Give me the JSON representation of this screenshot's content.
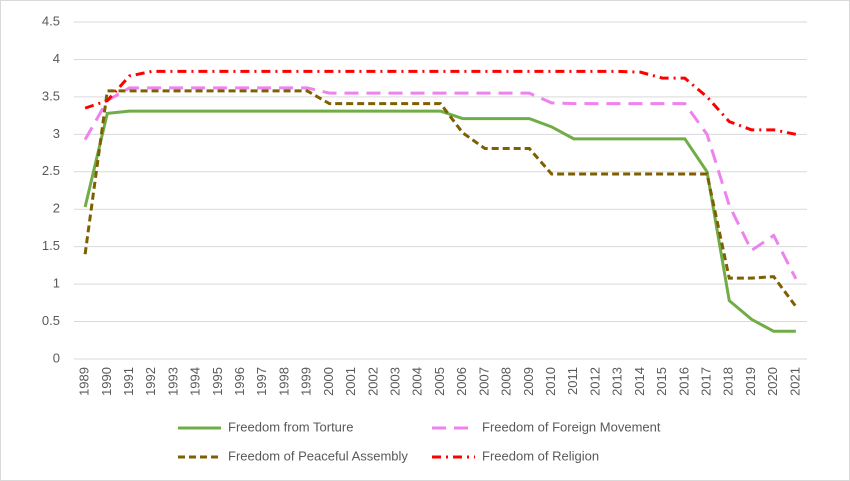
{
  "chart_data": {
    "type": "line",
    "categories": [
      "1989",
      "1990",
      "1991",
      "1992",
      "1993",
      "1994",
      "1995",
      "1996",
      "1997",
      "1998",
      "1999",
      "2000",
      "2001",
      "2002",
      "2003",
      "2004",
      "2005",
      "2006",
      "2007",
      "2008",
      "2009",
      "2010",
      "2011",
      "2012",
      "2013",
      "2014",
      "2015",
      "2016",
      "2017",
      "2018",
      "2019",
      "2020",
      "2021"
    ],
    "ylim": [
      0,
      4.5
    ],
    "yticks": [
      0,
      0.5,
      1,
      1.5,
      2,
      2.5,
      3,
      3.5,
      4,
      4.5
    ],
    "grid": true,
    "legend": "bottom",
    "series": [
      {
        "name": "Freedom from Torture",
        "color": "#70ad47",
        "dash": "solid",
        "values": [
          2.03,
          3.28,
          3.31,
          3.31,
          3.31,
          3.31,
          3.31,
          3.31,
          3.31,
          3.31,
          3.31,
          3.31,
          3.31,
          3.31,
          3.31,
          3.31,
          3.31,
          3.21,
          3.21,
          3.21,
          3.21,
          3.1,
          2.94,
          2.94,
          2.94,
          2.94,
          2.94,
          2.94,
          2.5,
          0.78,
          0.53,
          0.37,
          0.37
        ]
      },
      {
        "name": "Freedom of Foreign Movement",
        "color": "#ee82ee",
        "dash": "dashed",
        "values": [
          2.93,
          3.45,
          3.62,
          3.62,
          3.62,
          3.62,
          3.62,
          3.62,
          3.62,
          3.62,
          3.62,
          3.55,
          3.55,
          3.55,
          3.55,
          3.55,
          3.55,
          3.55,
          3.55,
          3.55,
          3.55,
          3.42,
          3.41,
          3.41,
          3.41,
          3.41,
          3.41,
          3.41,
          3.0,
          2.05,
          1.45,
          1.65,
          1.07
        ]
      },
      {
        "name": "Freedom of Peaceful Assembly",
        "color": "#7f6000",
        "dash": "short-dashed",
        "values": [
          1.4,
          3.58,
          3.58,
          3.58,
          3.58,
          3.58,
          3.58,
          3.58,
          3.58,
          3.58,
          3.58,
          3.41,
          3.41,
          3.41,
          3.41,
          3.41,
          3.41,
          3.02,
          2.81,
          2.81,
          2.81,
          2.47,
          2.47,
          2.47,
          2.47,
          2.47,
          2.47,
          2.47,
          2.47,
          1.08,
          1.08,
          1.1,
          0.7
        ]
      },
      {
        "name": "Freedom of Religion",
        "color": "#ff0000",
        "dash": "dashdot",
        "values": [
          3.35,
          3.45,
          3.78,
          3.84,
          3.84,
          3.84,
          3.84,
          3.84,
          3.84,
          3.84,
          3.84,
          3.84,
          3.84,
          3.84,
          3.84,
          3.84,
          3.84,
          3.84,
          3.84,
          3.84,
          3.84,
          3.84,
          3.84,
          3.84,
          3.84,
          3.83,
          3.75,
          3.75,
          3.5,
          3.17,
          3.06,
          3.06,
          3.0
        ]
      }
    ]
  }
}
